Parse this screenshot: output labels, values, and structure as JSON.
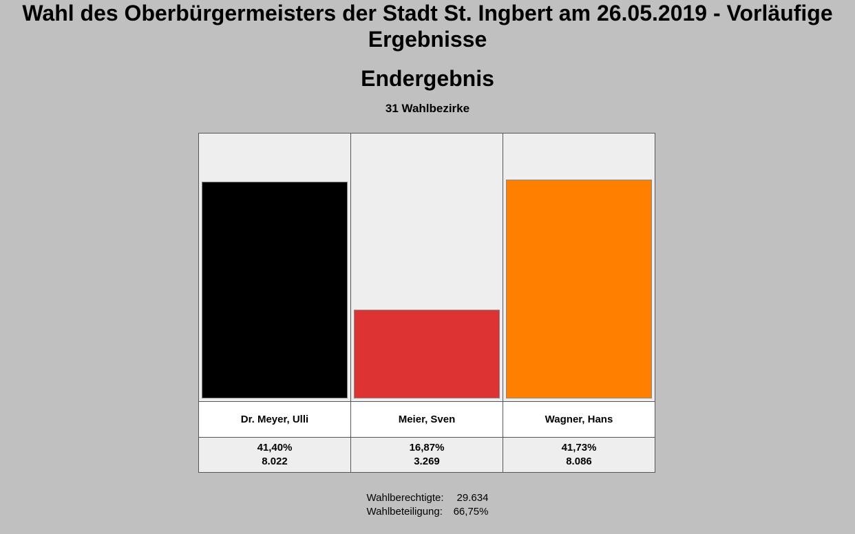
{
  "header": {
    "title": "Wahl des Oberbürgermeisters der Stadt St. Ingbert am 26.05.2019 - Vorläufige Ergebnisse",
    "subtitle": "Endergebnis",
    "districts": "31 Wahlbezirke"
  },
  "chart_data": {
    "type": "bar",
    "categories": [
      "Dr. Meyer, Ulli",
      "Meier, Sven",
      "Wagner, Hans"
    ],
    "values": [
      41.4,
      16.87,
      41.73
    ],
    "percent_labels": [
      "41,40%",
      "16,87%",
      "41,73%"
    ],
    "votes": [
      "8.022",
      "3.269",
      "8.086"
    ],
    "colors": [
      "#000000",
      "#dd3333",
      "#ff8000"
    ],
    "ylim": [
      0,
      50
    ],
    "grid": false,
    "legend": "none"
  },
  "summary": {
    "eligible_label": "Wahlberechtigte:",
    "eligible_value": "29.634",
    "turnout_label": "Wahlbeteiligung:",
    "turnout_value": "66,75%"
  }
}
